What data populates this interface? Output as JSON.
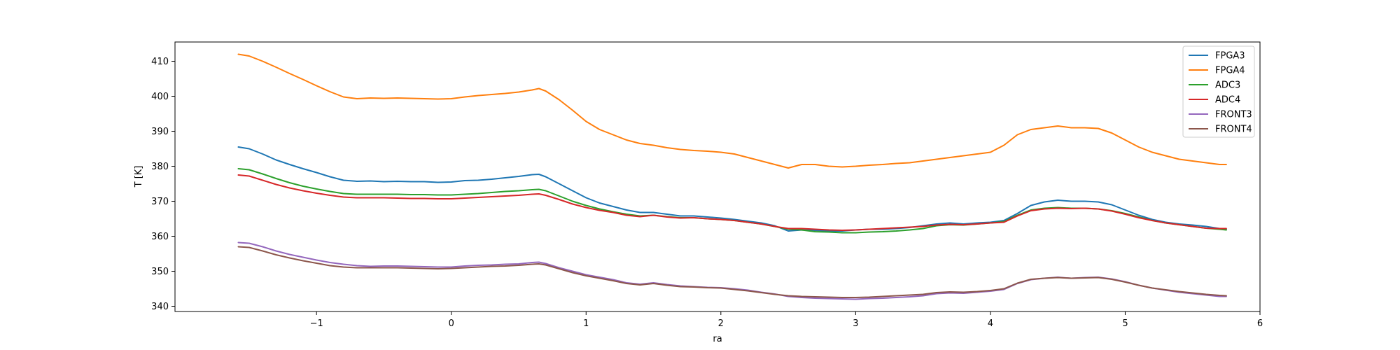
{
  "chart_data": {
    "type": "line",
    "xlabel": "ra",
    "ylabel": "T [K]",
    "xlim": [
      -2.05,
      6.0
    ],
    "ylim": [
      338.5,
      415.5
    ],
    "xticks": [
      -1,
      0,
      1,
      2,
      3,
      4,
      5,
      6
    ],
    "xtick_labels": [
      "−1",
      "0",
      "1",
      "2",
      "3",
      "4",
      "5",
      "6"
    ],
    "yticks": [
      340,
      350,
      360,
      370,
      380,
      390,
      400,
      410
    ],
    "ytick_labels": [
      "340",
      "350",
      "360",
      "370",
      "380",
      "390",
      "400",
      "410"
    ],
    "grid": false,
    "legend_position": "top-right",
    "series": [
      {
        "name": "FPGA3",
        "color": "#1f77b4",
        "x": [
          -1.58,
          -1.5,
          -1.4,
          -1.3,
          -1.2,
          -1.1,
          -1.0,
          -0.9,
          -0.8,
          -0.7,
          -0.6,
          -0.5,
          -0.4,
          -0.3,
          -0.2,
          -0.1,
          0.0,
          0.1,
          0.2,
          0.3,
          0.4,
          0.5,
          0.6,
          0.65,
          0.7,
          0.8,
          0.9,
          1.0,
          1.1,
          1.2,
          1.3,
          1.4,
          1.5,
          1.6,
          1.7,
          1.8,
          1.9,
          2.0,
          2.1,
          2.2,
          2.3,
          2.4,
          2.5,
          2.6,
          2.7,
          2.8,
          2.9,
          3.0,
          3.1,
          3.2,
          3.3,
          3.4,
          3.5,
          3.6,
          3.7,
          3.8,
          3.9,
          4.0,
          4.1,
          4.2,
          4.3,
          4.4,
          4.5,
          4.6,
          4.7,
          4.8,
          4.9,
          5.0,
          5.1,
          5.2,
          5.3,
          5.4,
          5.5,
          5.6,
          5.7,
          5.75
        ],
        "y": [
          385.5,
          385.0,
          383.5,
          381.8,
          380.5,
          379.3,
          378.2,
          377.0,
          376.0,
          375.7,
          375.8,
          375.6,
          375.7,
          375.6,
          375.6,
          375.4,
          375.5,
          375.9,
          376.0,
          376.3,
          376.7,
          377.1,
          377.6,
          377.7,
          377.0,
          375.0,
          373.0,
          371.0,
          369.5,
          368.5,
          367.5,
          366.8,
          366.8,
          366.3,
          365.8,
          365.8,
          365.5,
          365.2,
          364.8,
          364.3,
          363.8,
          363.0,
          361.5,
          361.8,
          361.7,
          361.5,
          361.5,
          361.8,
          362.0,
          362.0,
          362.2,
          362.5,
          363.0,
          363.5,
          363.8,
          363.5,
          363.8,
          364.0,
          364.5,
          366.5,
          368.8,
          369.8,
          370.3,
          370.0,
          370.0,
          369.8,
          369.0,
          367.5,
          366.0,
          364.8,
          364.0,
          363.5,
          363.2,
          362.8,
          362.2,
          362.0
        ]
      },
      {
        "name": "FPGA4",
        "color": "#ff7f0e",
        "x": [
          -1.58,
          -1.5,
          -1.4,
          -1.3,
          -1.2,
          -1.1,
          -1.0,
          -0.9,
          -0.8,
          -0.7,
          -0.6,
          -0.5,
          -0.4,
          -0.3,
          -0.2,
          -0.1,
          0.0,
          0.1,
          0.2,
          0.3,
          0.4,
          0.5,
          0.6,
          0.65,
          0.7,
          0.8,
          0.9,
          1.0,
          1.1,
          1.2,
          1.3,
          1.4,
          1.5,
          1.6,
          1.7,
          1.8,
          1.9,
          2.0,
          2.1,
          2.2,
          2.3,
          2.4,
          2.5,
          2.6,
          2.7,
          2.8,
          2.9,
          3.0,
          3.1,
          3.2,
          3.3,
          3.4,
          3.5,
          3.6,
          3.7,
          3.8,
          3.9,
          4.0,
          4.1,
          4.2,
          4.3,
          4.4,
          4.5,
          4.6,
          4.7,
          4.8,
          4.9,
          5.0,
          5.1,
          5.2,
          5.3,
          5.4,
          5.5,
          5.6,
          5.7,
          5.75
        ],
        "y": [
          412.0,
          411.5,
          410.0,
          408.3,
          406.5,
          404.8,
          403.0,
          401.3,
          399.8,
          399.3,
          399.5,
          399.4,
          399.5,
          399.4,
          399.3,
          399.2,
          399.3,
          399.8,
          400.2,
          400.5,
          400.8,
          401.2,
          401.8,
          402.2,
          401.5,
          399.0,
          396.0,
          392.8,
          390.5,
          389.0,
          387.5,
          386.5,
          386.0,
          385.3,
          384.8,
          384.5,
          384.3,
          384.0,
          383.5,
          382.5,
          381.5,
          380.5,
          379.5,
          380.5,
          380.5,
          380.0,
          379.8,
          380.0,
          380.3,
          380.5,
          380.8,
          381.0,
          381.5,
          382.0,
          382.5,
          383.0,
          383.5,
          384.0,
          386.0,
          389.0,
          390.5,
          391.0,
          391.5,
          391.0,
          391.0,
          390.8,
          389.5,
          387.5,
          385.5,
          384.0,
          383.0,
          382.0,
          381.5,
          381.0,
          380.5,
          380.5
        ]
      },
      {
        "name": "ADC3",
        "color": "#2ca02c",
        "x": [
          -1.58,
          -1.5,
          -1.4,
          -1.3,
          -1.2,
          -1.1,
          -1.0,
          -0.9,
          -0.8,
          -0.7,
          -0.6,
          -0.5,
          -0.4,
          -0.3,
          -0.2,
          -0.1,
          0.0,
          0.1,
          0.2,
          0.3,
          0.4,
          0.5,
          0.6,
          0.65,
          0.7,
          0.8,
          0.9,
          1.0,
          1.1,
          1.2,
          1.3,
          1.4,
          1.5,
          1.6,
          1.7,
          1.8,
          1.9,
          2.0,
          2.1,
          2.2,
          2.3,
          2.4,
          2.5,
          2.6,
          2.7,
          2.8,
          2.9,
          3.0,
          3.1,
          3.2,
          3.3,
          3.4,
          3.5,
          3.6,
          3.7,
          3.8,
          3.9,
          4.0,
          4.1,
          4.2,
          4.3,
          4.4,
          4.5,
          4.6,
          4.7,
          4.8,
          4.9,
          5.0,
          5.1,
          5.2,
          5.3,
          5.4,
          5.5,
          5.6,
          5.7,
          5.75
        ],
        "y": [
          379.3,
          379.0,
          377.8,
          376.5,
          375.3,
          374.3,
          373.5,
          372.8,
          372.2,
          372.0,
          372.0,
          372.0,
          372.0,
          371.9,
          371.9,
          371.8,
          371.8,
          372.0,
          372.2,
          372.5,
          372.8,
          373.0,
          373.3,
          373.4,
          373.0,
          371.5,
          370.0,
          368.8,
          367.8,
          367.0,
          366.3,
          365.8,
          366.0,
          365.6,
          365.3,
          365.3,
          365.0,
          364.8,
          364.5,
          364.0,
          363.5,
          362.8,
          362.0,
          361.8,
          361.3,
          361.2,
          361.0,
          361.0,
          361.2,
          361.3,
          361.5,
          361.8,
          362.2,
          363.0,
          363.3,
          363.2,
          363.5,
          363.8,
          364.2,
          366.0,
          367.5,
          368.0,
          368.2,
          368.0,
          368.0,
          367.8,
          367.3,
          366.5,
          365.5,
          364.5,
          363.8,
          363.3,
          362.8,
          362.3,
          362.0,
          361.8
        ]
      },
      {
        "name": "ADC4",
        "color": "#d62728",
        "x": [
          -1.58,
          -1.5,
          -1.4,
          -1.3,
          -1.2,
          -1.1,
          -1.0,
          -0.9,
          -0.8,
          -0.7,
          -0.6,
          -0.5,
          -0.4,
          -0.3,
          -0.2,
          -0.1,
          0.0,
          0.1,
          0.2,
          0.3,
          0.4,
          0.5,
          0.6,
          0.65,
          0.7,
          0.8,
          0.9,
          1.0,
          1.1,
          1.2,
          1.3,
          1.4,
          1.5,
          1.6,
          1.7,
          1.8,
          1.9,
          2.0,
          2.1,
          2.2,
          2.3,
          2.4,
          2.5,
          2.6,
          2.7,
          2.8,
          2.9,
          3.0,
          3.1,
          3.2,
          3.3,
          3.4,
          3.5,
          3.6,
          3.7,
          3.8,
          3.9,
          4.0,
          4.1,
          4.2,
          4.3,
          4.4,
          4.5,
          4.6,
          4.7,
          4.8,
          4.9,
          5.0,
          5.1,
          5.2,
          5.3,
          5.4,
          5.5,
          5.6,
          5.7,
          5.75
        ],
        "y": [
          377.5,
          377.2,
          376.0,
          374.8,
          373.8,
          373.0,
          372.3,
          371.7,
          371.2,
          371.0,
          371.0,
          371.0,
          370.9,
          370.8,
          370.8,
          370.7,
          370.7,
          370.9,
          371.1,
          371.3,
          371.5,
          371.7,
          372.0,
          372.1,
          371.7,
          370.5,
          369.2,
          368.2,
          367.4,
          366.8,
          366.0,
          365.6,
          366.0,
          365.5,
          365.2,
          365.3,
          365.0,
          364.8,
          364.5,
          364.0,
          363.5,
          362.8,
          362.2,
          362.2,
          362.0,
          361.8,
          361.7,
          361.8,
          362.0,
          362.2,
          362.4,
          362.6,
          362.8,
          363.2,
          363.4,
          363.3,
          363.5,
          363.8,
          364.0,
          365.8,
          367.3,
          367.8,
          368.0,
          367.9,
          368.0,
          367.8,
          367.2,
          366.3,
          365.3,
          364.5,
          363.8,
          363.3,
          362.8,
          362.3,
          362.2,
          362.2
        ]
      },
      {
        "name": "FRONT3",
        "color": "#9467bd",
        "x": [
          -1.58,
          -1.5,
          -1.4,
          -1.3,
          -1.2,
          -1.1,
          -1.0,
          -0.9,
          -0.8,
          -0.7,
          -0.6,
          -0.5,
          -0.4,
          -0.3,
          -0.2,
          -0.1,
          0.0,
          0.1,
          0.2,
          0.3,
          0.4,
          0.5,
          0.6,
          0.65,
          0.7,
          0.8,
          0.9,
          1.0,
          1.1,
          1.2,
          1.3,
          1.4,
          1.5,
          1.6,
          1.7,
          1.8,
          1.9,
          2.0,
          2.1,
          2.2,
          2.3,
          2.4,
          2.5,
          2.6,
          2.7,
          2.8,
          2.9,
          3.0,
          3.1,
          3.2,
          3.3,
          3.4,
          3.5,
          3.6,
          3.7,
          3.8,
          3.9,
          4.0,
          4.1,
          4.2,
          4.3,
          4.4,
          4.5,
          4.6,
          4.7,
          4.8,
          4.9,
          5.0,
          5.1,
          5.2,
          5.3,
          5.4,
          5.5,
          5.6,
          5.7,
          5.75
        ],
        "y": [
          358.2,
          358.0,
          357.0,
          355.8,
          354.8,
          354.0,
          353.2,
          352.5,
          352.0,
          351.6,
          351.4,
          351.5,
          351.5,
          351.4,
          351.3,
          351.2,
          351.2,
          351.5,
          351.7,
          351.8,
          352.0,
          352.1,
          352.5,
          352.6,
          352.2,
          351.0,
          350.0,
          349.0,
          348.3,
          347.6,
          346.7,
          346.3,
          346.7,
          346.2,
          345.8,
          345.6,
          345.4,
          345.3,
          345.0,
          344.6,
          344.0,
          343.5,
          342.8,
          342.5,
          342.3,
          342.2,
          342.1,
          342.0,
          342.2,
          342.3,
          342.5,
          342.7,
          343.0,
          343.6,
          343.8,
          343.7,
          344.0,
          344.3,
          344.8,
          346.5,
          347.6,
          348.0,
          348.3,
          348.0,
          348.2,
          348.3,
          347.8,
          347.0,
          346.0,
          345.2,
          344.6,
          344.0,
          343.6,
          343.2,
          342.8,
          342.8
        ]
      },
      {
        "name": "FRONT4",
        "color": "#8c564b",
        "x": [
          -1.58,
          -1.5,
          -1.4,
          -1.3,
          -1.2,
          -1.1,
          -1.0,
          -0.9,
          -0.8,
          -0.7,
          -0.6,
          -0.5,
          -0.4,
          -0.3,
          -0.2,
          -0.1,
          0.0,
          0.1,
          0.2,
          0.3,
          0.4,
          0.5,
          0.6,
          0.65,
          0.7,
          0.8,
          0.9,
          1.0,
          1.1,
          1.2,
          1.3,
          1.4,
          1.5,
          1.6,
          1.7,
          1.8,
          1.9,
          2.0,
          2.1,
          2.2,
          2.3,
          2.4,
          2.5,
          2.6,
          2.7,
          2.8,
          2.9,
          3.0,
          3.1,
          3.2,
          3.3,
          3.4,
          3.5,
          3.6,
          3.7,
          3.8,
          3.9,
          4.0,
          4.1,
          4.2,
          4.3,
          4.4,
          4.5,
          4.6,
          4.7,
          4.8,
          4.9,
          5.0,
          5.1,
          5.2,
          5.3,
          5.4,
          5.5,
          5.6,
          5.7,
          5.75
        ],
        "y": [
          357.0,
          356.8,
          355.8,
          354.7,
          353.8,
          353.0,
          352.3,
          351.6,
          351.2,
          351.0,
          351.0,
          351.0,
          351.0,
          350.9,
          350.8,
          350.7,
          350.8,
          351.0,
          351.2,
          351.4,
          351.5,
          351.7,
          352.0,
          352.1,
          351.8,
          350.7,
          349.6,
          348.7,
          348.0,
          347.3,
          346.5,
          346.1,
          346.5,
          346.0,
          345.6,
          345.5,
          345.3,
          345.2,
          344.8,
          344.4,
          343.9,
          343.4,
          343.0,
          342.8,
          342.7,
          342.6,
          342.5,
          342.5,
          342.6,
          342.8,
          343.0,
          343.2,
          343.4,
          343.9,
          344.1,
          344.0,
          344.2,
          344.5,
          345.0,
          346.6,
          347.7,
          348.0,
          348.2,
          348.0,
          348.1,
          348.2,
          347.7,
          346.9,
          346.0,
          345.2,
          344.7,
          344.2,
          343.8,
          343.4,
          343.1,
          343.0
        ]
      }
    ]
  }
}
